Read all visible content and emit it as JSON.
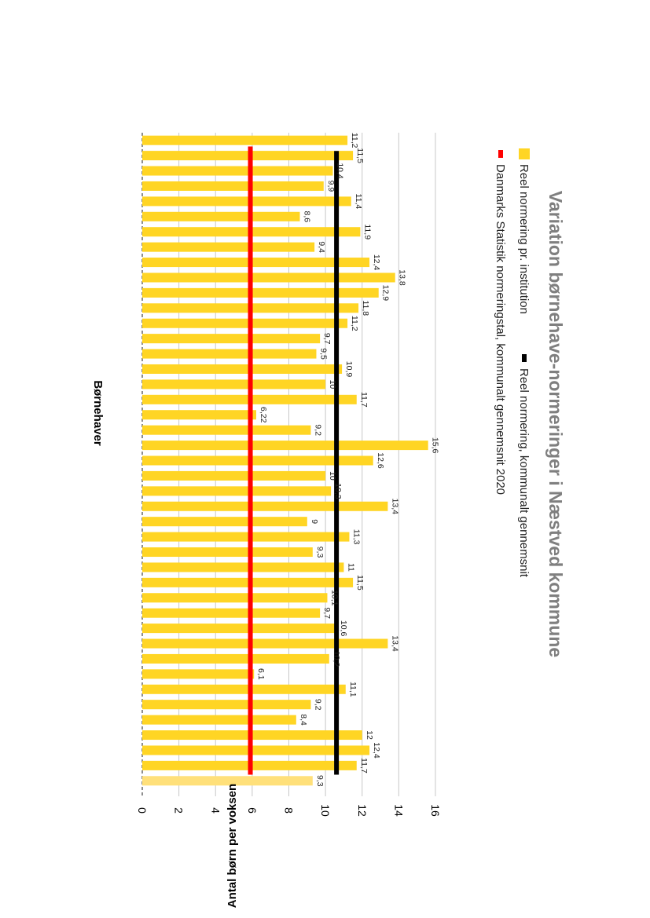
{
  "chart_data": {
    "type": "bar",
    "title": "Variation børnehave-normeringer i Næstved kommune",
    "xlabel": "Børnehaver",
    "ylabel": "Antal børn per voksen",
    "ylim": [
      0,
      16
    ],
    "yticks": [
      "0",
      "2",
      "4",
      "6",
      "8",
      "10",
      "12",
      "14",
      "16"
    ],
    "grid": true,
    "legend_position": "top",
    "series": [
      {
        "name": "Reel normering pr. institution",
        "kind": "bar",
        "color": "#FFD524",
        "values": [
          11.2,
          11.5,
          10.4,
          9.9,
          11.4,
          8.6,
          11.9,
          9.4,
          12.4,
          13.8,
          12.9,
          11.8,
          11.2,
          9.7,
          9.5,
          10.9,
          10,
          11.7,
          6.22,
          9.2,
          15.6,
          12.6,
          10,
          10.3,
          13.4,
          9,
          11.3,
          9.3,
          11,
          11.5,
          10.1,
          9.7,
          10.6,
          13.4,
          10.2,
          6.1,
          11.1,
          9.2,
          8.4,
          12,
          12.4,
          11.7,
          9.3
        ],
        "labels": [
          "11,2",
          "11,5",
          "10,4",
          "9,9",
          "11,4",
          "8,6",
          "11,9",
          "9,4",
          "12,4",
          "13,8",
          "12,9",
          "11,8",
          "11,2",
          "9,7",
          "9,5",
          "10,9",
          "10",
          "11,7",
          "6,22",
          "9,2",
          "15,6",
          "12,6",
          "10",
          "10,3",
          "13,4",
          "9",
          "11,3",
          "9,3",
          "11",
          "11,5",
          "10,1",
          "9,7",
          "10,6",
          "13,4",
          "10,2",
          "6,1",
          "11,1",
          "9,2",
          "8,4",
          "12",
          "12,4",
          "11,7",
          "9,3"
        ]
      },
      {
        "name": "Reel normering, kommunalt gennemsnit",
        "kind": "line",
        "color": "#000000",
        "value": 10.6
      },
      {
        "name": "Danmarks Statistik normeringstal, kommunalt gennemsnit 2020",
        "kind": "line",
        "color": "#FF0000",
        "value": 5.9
      }
    ]
  }
}
